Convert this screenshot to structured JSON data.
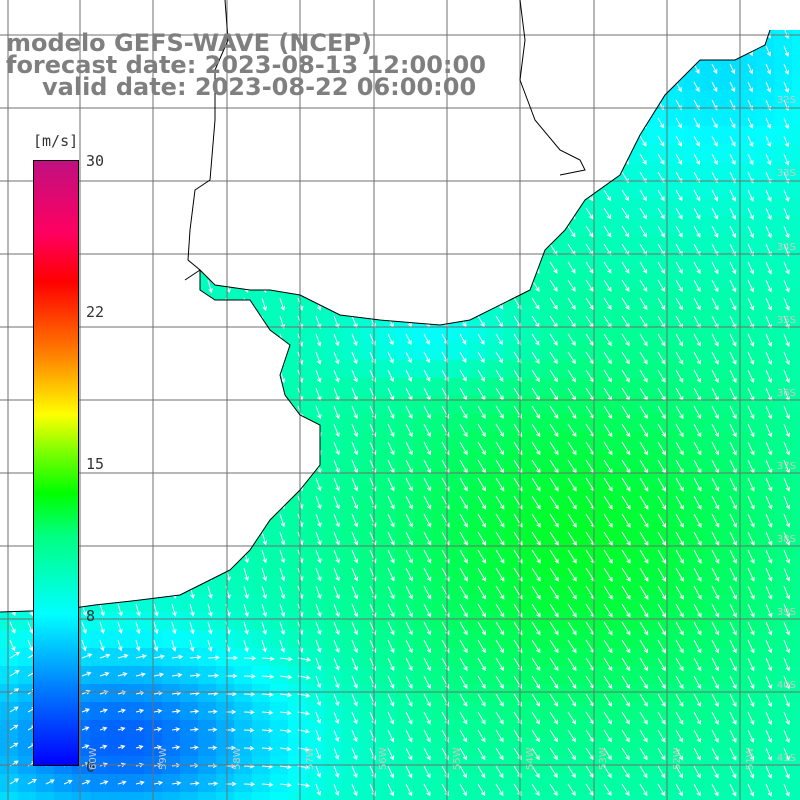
{
  "title": {
    "model": "modelo GEFS-WAVE (NCEP)",
    "forecast": "forecast date: 2023-08-13 12:00:00",
    "valid": "valid date: 2023-08-22 06:00:00"
  },
  "colorbar": {
    "unit": "[m/s]",
    "ticks": [
      "30",
      "22",
      "15",
      "8",
      "0"
    ],
    "tick_values": [
      30,
      22,
      15,
      8,
      0
    ],
    "range": [
      0,
      30
    ]
  },
  "lat_labels": [
    "32S",
    "33S",
    "34S",
    "35S",
    "36S",
    "37S",
    "38S",
    "39S",
    "40S",
    "41S"
  ],
  "lon_labels": [
    "60W",
    "59W",
    "58W",
    "57W",
    "56W",
    "55W",
    "54W",
    "53W",
    "52W",
    "51W"
  ],
  "colors": {
    "land": "#ffffff",
    "coast": "#000000",
    "grid": "#6f6f6f",
    "arrow": "#ffffff",
    "title": "#7f7f7f"
  }
}
